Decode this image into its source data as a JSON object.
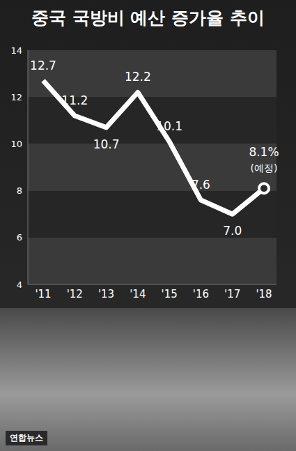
{
  "chart_data": {
    "type": "line",
    "title": "중국 국방비 예산 증가율 추이",
    "categories": [
      "'11",
      "'12",
      "'13",
      "'14",
      "'15",
      "'16",
      "'17",
      "'18"
    ],
    "values": [
      12.7,
      11.2,
      10.7,
      12.2,
      10.1,
      7.6,
      7.0,
      8.1
    ],
    "value_labels": [
      "12.7",
      "11.2",
      "10.7",
      "12.2",
      "10.1",
      "7.6",
      "7.0",
      "8.1%"
    ],
    "color": "#ffffff",
    "ylim": [
      4,
      14
    ],
    "yticks": [
      4,
      6,
      8,
      10,
      12,
      14
    ],
    "grid": true,
    "data_labels": true,
    "annotations": [
      "(예정)"
    ],
    "source": "연합뉴스"
  }
}
